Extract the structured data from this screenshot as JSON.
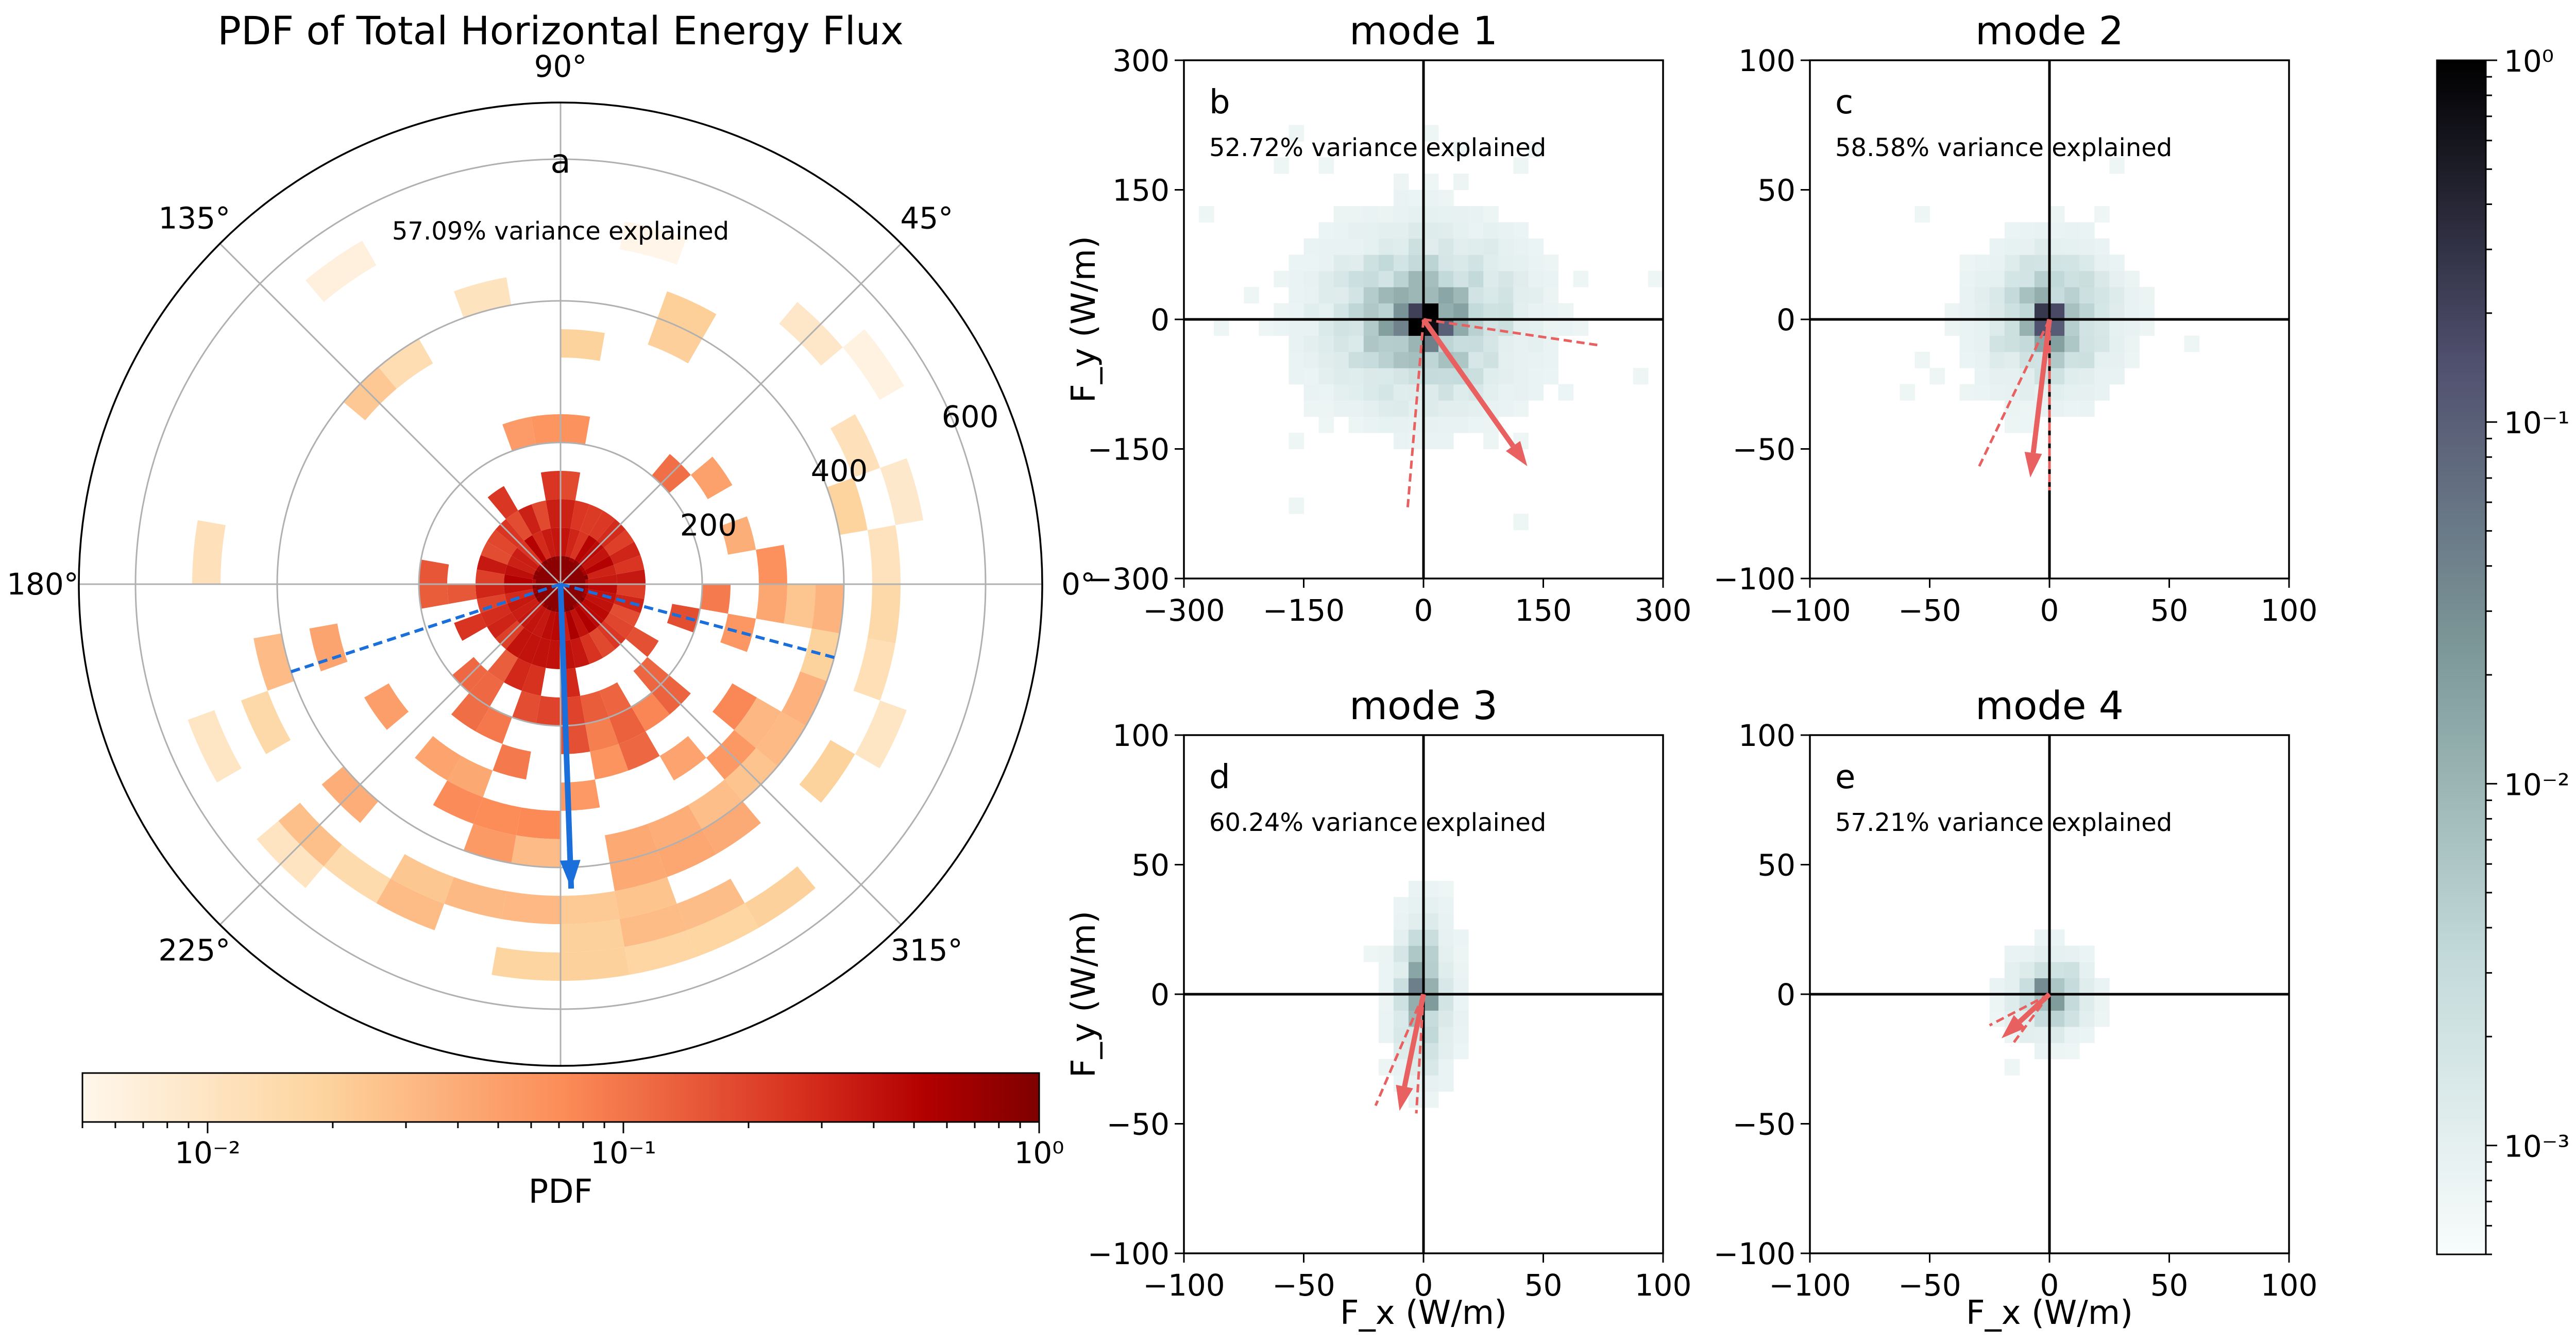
{
  "figure": {
    "panel_a_title": "PDF of Total Horizontal Energy Flux",
    "mode_titles": [
      "mode 1",
      "mode 2",
      "mode 3",
      "mode 4"
    ],
    "panel_letters": [
      "a",
      "b",
      "c",
      "d",
      "e"
    ],
    "variance_texts": [
      "57.09% variance explained",
      "52.72% variance explained",
      "58.58% variance explained",
      "60.24% variance explained",
      "57.21% variance explained"
    ],
    "x_axis_label": "F_x (W/m)",
    "y_axis_label": "F_y (W/m)",
    "colorbar_label": "PDF"
  },
  "chart_data": [
    {
      "id": "a",
      "type": "heatmap",
      "projection": "polar",
      "title": "PDF of Total Horizontal Energy Flux",
      "angle_ticks_deg": [
        0,
        45,
        90,
        135,
        180,
        225,
        315
      ],
      "angle_tick_labels": [
        "0°",
        "45°",
        "90°",
        "135°",
        "180°",
        "225°",
        "315°"
      ],
      "radial_ticks": [
        200,
        400,
        600
      ],
      "rmax": 680,
      "annotation": "57.09% variance explained",
      "mean_vector": {
        "r": 430,
        "theta_deg": 272,
        "color": "#1a6fdb"
      },
      "ellipse_axes": [
        {
          "r": 400,
          "theta_deg": 198
        },
        {
          "r": 400,
          "theta_deg": 345
        }
      ],
      "colorbar": {
        "label": "PDF",
        "scale": "log",
        "min": 0.005,
        "max": 1,
        "ticks": [
          0.01,
          0.1,
          1
        ],
        "tick_labels": [
          "10⁻²",
          "10⁻¹",
          "10⁰"
        ],
        "colormap": "OrRd"
      }
    },
    {
      "id": "b",
      "title": "mode 1",
      "type": "heatmap",
      "xlim": [
        -300,
        300
      ],
      "ylim": [
        -300,
        300
      ],
      "xticks": [
        -300,
        -150,
        0,
        150,
        300
      ],
      "yticks": [
        -300,
        -150,
        0,
        150,
        300
      ],
      "xtick_labels": [
        "−300",
        "−150",
        "0",
        "150",
        "300"
      ],
      "ytick_labels": [
        "−300",
        "−150",
        "0",
        "150",
        "300"
      ],
      "annotation": "52.72% variance explained",
      "mean_vector": [
        130,
        -170
      ],
      "ellipse_axes": [
        [
          220,
          -30
        ],
        [
          -20,
          -220
        ]
      ],
      "spread": [
        105,
        85
      ]
    },
    {
      "id": "c",
      "title": "mode 2",
      "type": "heatmap",
      "xlim": [
        -100,
        100
      ],
      "ylim": [
        -100,
        100
      ],
      "xticks": [
        -100,
        -50,
        0,
        50,
        100
      ],
      "yticks": [
        -100,
        -50,
        0,
        50,
        100
      ],
      "xtick_labels": [
        "−100",
        "−50",
        "0",
        "50",
        "100"
      ],
      "ytick_labels": [
        "−100",
        "−50",
        "0",
        "50",
        "100"
      ],
      "annotation": "58.58% variance explained",
      "mean_vector": [
        -8,
        -61
      ],
      "ellipse_axes": [
        [
          -30,
          -58
        ],
        [
          0,
          -66
        ]
      ],
      "spread": [
        24,
        22
      ]
    },
    {
      "id": "d",
      "title": "mode 3",
      "type": "heatmap",
      "xlim": [
        -100,
        100
      ],
      "ylim": [
        -100,
        100
      ],
      "xticks": [
        -100,
        -50,
        0,
        50,
        100
      ],
      "yticks": [
        -100,
        -50,
        0,
        50,
        100
      ],
      "xtick_labels": [
        "−100",
        "−50",
        "0",
        "50",
        "100"
      ],
      "ytick_labels": [
        "−100",
        "−50",
        "0",
        "50",
        "100"
      ],
      "annotation": "60.24% variance explained",
      "mean_vector": [
        -10,
        -45
      ],
      "ellipse_axes": [
        [
          -20,
          -43
        ],
        [
          -3,
          -46
        ]
      ],
      "spread": [
        10,
        25
      ]
    },
    {
      "id": "e",
      "title": "mode 4",
      "type": "heatmap",
      "xlim": [
        -100,
        100
      ],
      "ylim": [
        -100,
        100
      ],
      "xticks": [
        -100,
        -50,
        0,
        50,
        100
      ],
      "yticks": [
        -100,
        -50,
        0,
        50,
        100
      ],
      "xtick_labels": [
        "−100",
        "−50",
        "0",
        "50",
        "100"
      ],
      "ytick_labels": [
        "−100",
        "−50",
        "0",
        "50",
        "100"
      ],
      "annotation": "57.21% variance explained",
      "mean_vector": [
        -20,
        -17
      ],
      "ellipse_axes": [
        [
          -25,
          -12
        ],
        [
          -16,
          -20
        ]
      ],
      "spread": [
        13,
        13
      ]
    },
    {
      "id": "colorbar-right",
      "type": "colorbar",
      "label": "PDF",
      "scale": "log",
      "min": 0.0005,
      "max": 1,
      "ticks": [
        0.001,
        0.01,
        0.1,
        1
      ],
      "tick_labels": [
        "10⁻³",
        "10⁻²",
        "10⁻¹",
        "10⁰"
      ],
      "colormap": "bone_r"
    }
  ]
}
